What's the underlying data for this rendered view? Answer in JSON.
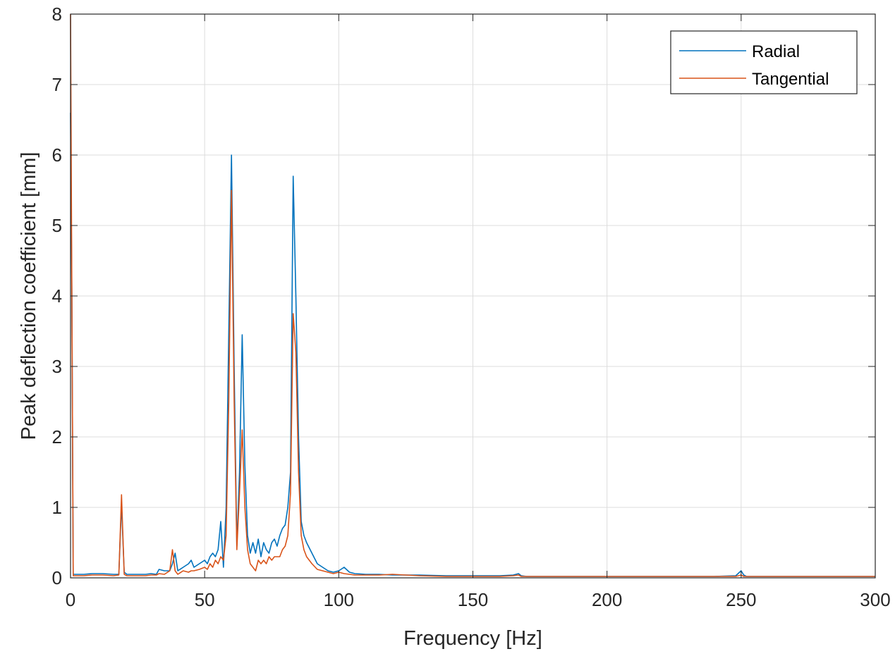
{
  "chart_data": {
    "type": "line",
    "title": "",
    "xlabel": "Frequency [Hz]",
    "ylabel": "Peak deflection coefficient [mm]",
    "xlim": [
      0,
      300
    ],
    "ylim": [
      0,
      8
    ],
    "xticks": [
      0,
      50,
      100,
      150,
      200,
      250,
      300
    ],
    "yticks": [
      0,
      1,
      2,
      3,
      4,
      5,
      6,
      7,
      8
    ],
    "xtick_labels": [
      "0",
      "50",
      "100",
      "150",
      "200",
      "250",
      "300"
    ],
    "ytick_labels": [
      "0",
      "1",
      "2",
      "3",
      "4",
      "5",
      "6",
      "7",
      "8"
    ],
    "grid": true,
    "legend_position": "top-right",
    "series": [
      {
        "name": "Radial",
        "color": "#0072BD",
        "x": [
          0,
          0.5,
          1,
          2,
          5,
          8,
          12,
          16,
          18,
          19,
          20,
          21,
          22,
          25,
          28,
          30,
          32,
          33,
          35,
          37,
          38,
          39,
          40,
          42,
          44,
          45,
          46,
          48,
          50,
          51,
          52,
          53,
          54,
          55,
          56,
          57,
          58,
          59,
          60,
          61,
          62,
          63,
          64,
          65,
          66,
          67,
          68,
          69,
          70,
          71,
          72,
          73,
          74,
          75,
          76,
          77,
          78,
          79,
          80,
          81,
          82,
          83,
          84,
          85,
          86,
          87,
          88,
          90,
          92,
          94,
          96,
          98,
          100,
          102,
          104,
          106,
          110,
          115,
          120,
          130,
          140,
          150,
          160,
          165,
          167,
          168,
          170,
          180,
          200,
          220,
          240,
          248,
          250,
          251,
          252,
          260,
          280,
          300
        ],
        "y": [
          6.6,
          4.0,
          0.05,
          0.05,
          0.05,
          0.06,
          0.06,
          0.05,
          0.05,
          1.05,
          0.08,
          0.05,
          0.05,
          0.05,
          0.05,
          0.06,
          0.05,
          0.12,
          0.1,
          0.1,
          0.2,
          0.35,
          0.1,
          0.15,
          0.2,
          0.25,
          0.15,
          0.2,
          0.25,
          0.2,
          0.3,
          0.35,
          0.3,
          0.4,
          0.8,
          0.15,
          1.0,
          3.5,
          6.0,
          3.0,
          0.45,
          1.5,
          3.45,
          1.6,
          0.6,
          0.35,
          0.5,
          0.35,
          0.55,
          0.3,
          0.5,
          0.4,
          0.35,
          0.5,
          0.55,
          0.45,
          0.6,
          0.7,
          0.75,
          1.0,
          1.5,
          5.7,
          4.0,
          2.0,
          0.8,
          0.6,
          0.5,
          0.35,
          0.2,
          0.15,
          0.1,
          0.08,
          0.1,
          0.15,
          0.08,
          0.06,
          0.05,
          0.05,
          0.04,
          0.04,
          0.03,
          0.03,
          0.03,
          0.04,
          0.06,
          0.03,
          0.02,
          0.02,
          0.02,
          0.02,
          0.02,
          0.03,
          0.1,
          0.04,
          0.02,
          0.02,
          0.02,
          0.02
        ]
      },
      {
        "name": "Tangential",
        "color": "#D95319",
        "x": [
          0,
          0.5,
          1,
          2,
          5,
          8,
          12,
          16,
          18,
          19,
          20,
          21,
          22,
          25,
          28,
          30,
          32,
          33,
          35,
          37,
          38,
          39,
          40,
          42,
          44,
          45,
          46,
          48,
          50,
          51,
          52,
          53,
          54,
          55,
          56,
          57,
          58,
          59,
          60,
          61,
          62,
          63,
          64,
          65,
          66,
          67,
          68,
          69,
          70,
          71,
          72,
          73,
          74,
          75,
          76,
          77,
          78,
          79,
          80,
          81,
          82,
          83,
          84,
          85,
          86,
          87,
          88,
          90,
          92,
          94,
          96,
          98,
          100,
          102,
          104,
          106,
          110,
          115,
          120,
          130,
          140,
          150,
          160,
          165,
          167,
          168,
          170,
          180,
          200,
          220,
          240,
          248,
          250,
          251,
          252,
          260,
          280,
          300
        ],
        "y": [
          8.0,
          4.0,
          0.03,
          0.03,
          0.03,
          0.04,
          0.04,
          0.03,
          0.04,
          1.18,
          0.05,
          0.03,
          0.03,
          0.03,
          0.03,
          0.04,
          0.04,
          0.06,
          0.05,
          0.1,
          0.4,
          0.1,
          0.05,
          0.1,
          0.08,
          0.1,
          0.1,
          0.12,
          0.15,
          0.12,
          0.2,
          0.15,
          0.25,
          0.2,
          0.3,
          0.25,
          0.6,
          2.5,
          5.5,
          2.5,
          0.4,
          1.2,
          2.1,
          1.0,
          0.4,
          0.2,
          0.15,
          0.1,
          0.25,
          0.2,
          0.25,
          0.2,
          0.3,
          0.25,
          0.3,
          0.3,
          0.3,
          0.4,
          0.45,
          0.6,
          1.2,
          3.75,
          3.2,
          1.5,
          0.6,
          0.4,
          0.3,
          0.2,
          0.12,
          0.1,
          0.08,
          0.06,
          0.08,
          0.06,
          0.05,
          0.04,
          0.04,
          0.04,
          0.05,
          0.03,
          0.02,
          0.02,
          0.02,
          0.03,
          0.04,
          0.02,
          0.02,
          0.02,
          0.02,
          0.02,
          0.02,
          0.02,
          0.04,
          0.02,
          0.02,
          0.02,
          0.02,
          0.02
        ]
      }
    ]
  }
}
